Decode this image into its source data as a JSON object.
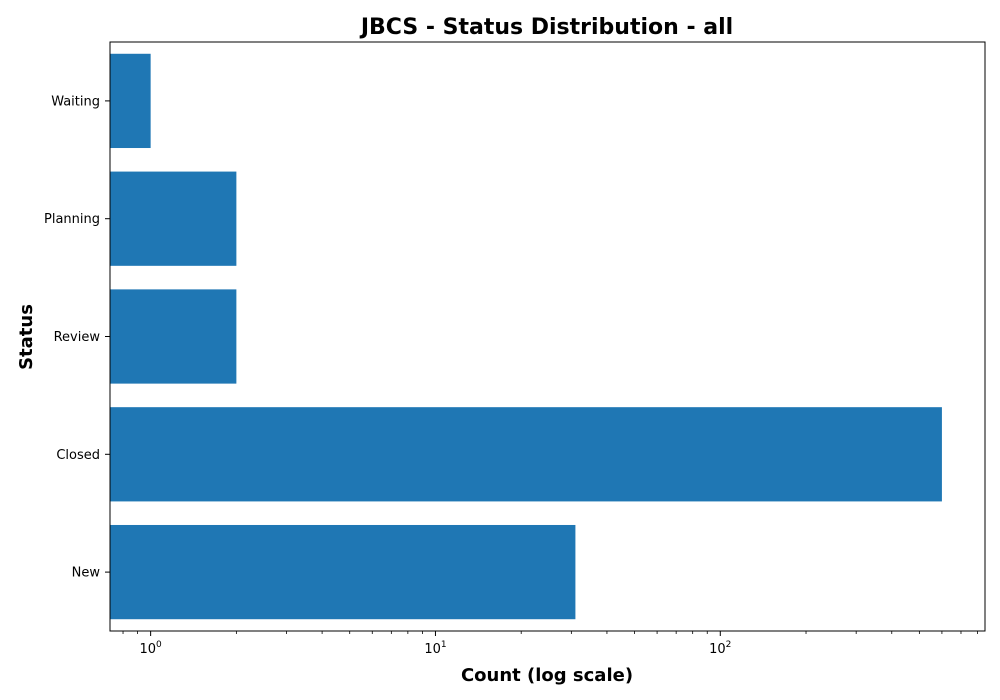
{
  "chart_data": {
    "type": "bar",
    "orientation": "horizontal",
    "title": "JBCS - Status Distribution - all",
    "xlabel": "Count (log scale)",
    "ylabel": "Status",
    "x_scale": "log",
    "xlim": [
      0.72,
      850
    ],
    "categories": [
      "New",
      "Closed",
      "Review",
      "Planning",
      "Waiting"
    ],
    "values": [
      31,
      600,
      2,
      2,
      1
    ],
    "x_major_ticks": [
      {
        "base": "10",
        "exp": "0",
        "value": 1
      },
      {
        "base": "10",
        "exp": "1",
        "value": 10
      },
      {
        "base": "10",
        "exp": "2",
        "value": 100
      }
    ],
    "bar_color": "#1f77b4",
    "grid": false,
    "legend": "none"
  }
}
